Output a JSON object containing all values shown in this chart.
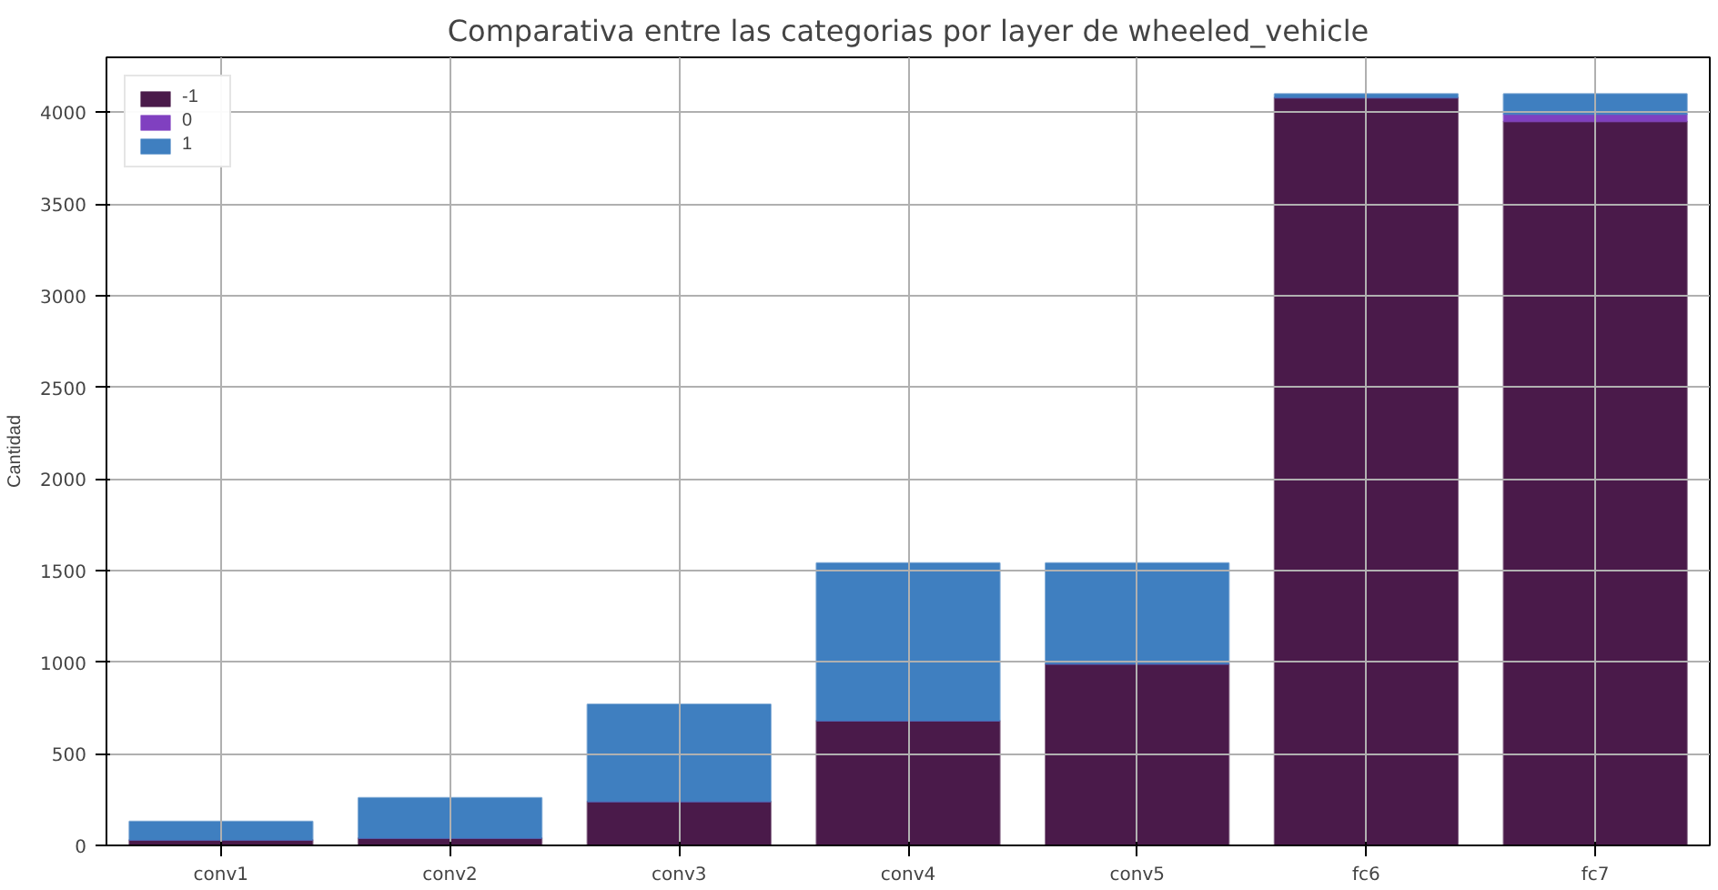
{
  "chart_data": {
    "type": "bar",
    "title": "Comparativa entre las categorias por layer de wheeled_vehicle",
    "ylabel": "Cantidad",
    "categories": [
      "conv1",
      "conv2",
      "conv3",
      "conv4",
      "conv5",
      "fc6",
      "fc7"
    ],
    "stacked": true,
    "series": [
      {
        "name": "-1",
        "color": "#4a1a4a",
        "values": [
          30,
          40,
          240,
          680,
          990,
          4080,
          3950
        ]
      },
      {
        "name": "0",
        "color": "#8040c0",
        "values": [
          0,
          0,
          0,
          0,
          0,
          null,
          40
        ]
      },
      {
        "name": "1",
        "color": "#3f7fc0",
        "values": [
          100,
          220,
          530,
          860,
          550,
          20,
          110
        ]
      }
    ],
    "ylim": [
      0,
      4300
    ],
    "yticks": [
      0,
      500,
      1000,
      1500,
      2000,
      2500,
      3000,
      3500,
      4000
    ],
    "grid": true,
    "legend": "top left"
  }
}
